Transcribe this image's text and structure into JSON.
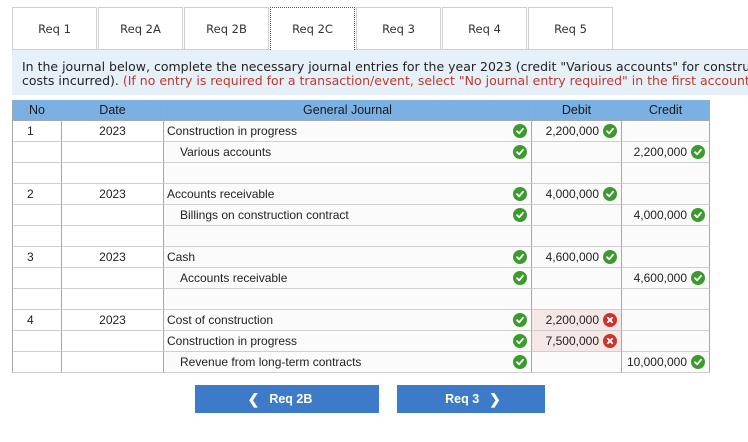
{
  "tabs": [
    {
      "label": "Req 1",
      "active": false
    },
    {
      "label": "Req 2A",
      "active": false
    },
    {
      "label": "Req 2B",
      "active": false
    },
    {
      "label": "Req 2C",
      "active": true
    },
    {
      "label": "Req 3",
      "active": false
    },
    {
      "label": "Req 4",
      "active": false
    },
    {
      "label": "Req 5",
      "active": false
    }
  ],
  "instruction": {
    "line1": "In the journal below, complete the necessary journal entries for the year 2023 (credit \"Various accounts\" for construction",
    "line2_black": "costs incurred). ",
    "line2_red": "(If no entry is required for a transaction/event, select \"No journal entry required\" in the first account field.)"
  },
  "table": {
    "headers": {
      "no": "No",
      "date": "Date",
      "journal": "General Journal",
      "debit": "Debit",
      "credit": "Credit"
    },
    "rows": [
      {
        "no": "1",
        "date": "2023",
        "account": "Construction in progress",
        "indent": false,
        "acct_status": "ok",
        "debit": "2,200,000",
        "debit_status": "ok",
        "credit": "",
        "credit_status": ""
      },
      {
        "no": "",
        "date": "",
        "account": "Various accounts",
        "indent": true,
        "acct_status": "ok",
        "debit": "",
        "debit_status": "",
        "credit": "2,200,000",
        "credit_status": "ok"
      },
      {
        "no": "",
        "date": "",
        "account": "",
        "indent": false,
        "acct_status": "",
        "debit": "",
        "debit_status": "",
        "credit": "",
        "credit_status": ""
      },
      {
        "no": "2",
        "date": "2023",
        "account": "Accounts receivable",
        "indent": false,
        "acct_status": "ok",
        "debit": "4,000,000",
        "debit_status": "ok",
        "credit": "",
        "credit_status": ""
      },
      {
        "no": "",
        "date": "",
        "account": "Billings on construction contract",
        "indent": true,
        "acct_status": "ok",
        "debit": "",
        "debit_status": "",
        "credit": "4,000,000",
        "credit_status": "ok"
      },
      {
        "no": "",
        "date": "",
        "account": "",
        "indent": false,
        "acct_status": "",
        "debit": "",
        "debit_status": "",
        "credit": "",
        "credit_status": ""
      },
      {
        "no": "3",
        "date": "2023",
        "account": "Cash",
        "indent": false,
        "acct_status": "ok",
        "debit": "4,600,000",
        "debit_status": "ok",
        "credit": "",
        "credit_status": ""
      },
      {
        "no": "",
        "date": "",
        "account": "Accounts receivable",
        "indent": true,
        "acct_status": "ok",
        "debit": "",
        "debit_status": "",
        "credit": "4,600,000",
        "credit_status": "ok"
      },
      {
        "no": "",
        "date": "",
        "account": "",
        "indent": false,
        "acct_status": "",
        "debit": "",
        "debit_status": "",
        "credit": "",
        "credit_status": ""
      },
      {
        "no": "4",
        "date": "2023",
        "account": "Cost of construction",
        "indent": false,
        "acct_status": "ok",
        "debit": "2,200,000",
        "debit_status": "bad",
        "credit": "",
        "credit_status": ""
      },
      {
        "no": "",
        "date": "",
        "account": "Construction in progress",
        "indent": false,
        "acct_status": "ok",
        "debit": "7,500,000",
        "debit_status": "bad",
        "credit": "",
        "credit_status": ""
      },
      {
        "no": "",
        "date": "",
        "account": "Revenue from long-term contracts",
        "indent": true,
        "acct_status": "ok",
        "debit": "",
        "debit_status": "",
        "credit": "10,000,000",
        "credit_status": "ok"
      }
    ]
  },
  "nav": {
    "prev_label": "Req 2B",
    "next_label": "Req 3"
  },
  "colors": {
    "header_blue": "#7bb0e3",
    "button_blue": "#3d7bc9",
    "check_green": "#3c9a2e",
    "error_red": "#c9342e",
    "instruction_bg": "#e6f0f8"
  },
  "icons": {
    "correct": "check-circle-icon",
    "incorrect": "x-circle-icon",
    "prev": "chevron-left-icon",
    "next": "chevron-right-icon"
  }
}
